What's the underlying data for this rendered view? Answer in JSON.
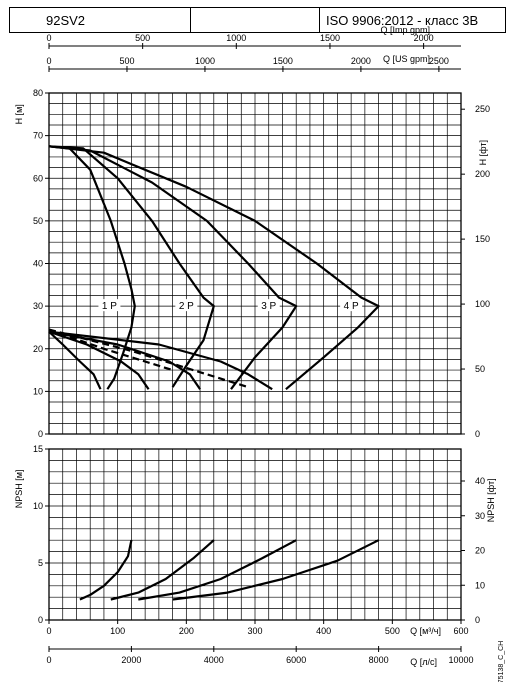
{
  "header": {
    "model": "92SV2",
    "middle": "",
    "standard": "ISO 9906:2012 - класс 3B"
  },
  "colors": {
    "ink": "#000000",
    "grid": "#000000",
    "background": "#ffffff"
  },
  "code_label": "75138_C_CH",
  "chart_data": [
    {
      "type": "line",
      "title": "",
      "ylabel": "H [м]",
      "ylabel_right": "H [фт]",
      "xlabel": "Q [м³/ч]",
      "ylim": [
        0,
        80
      ],
      "yticks": [
        0,
        10,
        20,
        30,
        40,
        50,
        60,
        70,
        80
      ],
      "right_axis": {
        "label": "H [фт]",
        "ticks": [
          0,
          50,
          100,
          150,
          200,
          250
        ],
        "factor": 3.28084
      },
      "top_axes": [
        {
          "label": "Q [Imp gpm]",
          "ticks": [
            0,
            500,
            1000,
            1500,
            2000
          ],
          "factor": 3.666
        },
        {
          "label": "Q [US gpm]",
          "ticks": [
            0,
            500,
            1000,
            1500,
            2000,
            2500
          ],
          "factor": 4.403
        }
      ],
      "grid": true,
      "series": [
        {
          "name": "1 P",
          "style": "head",
          "points": [
            [
              0,
              67.5
            ],
            [
              30,
              67
            ],
            [
              60,
              62
            ],
            [
              90,
              50
            ],
            [
              110,
              40
            ],
            [
              120,
              34
            ],
            [
              125,
              30
            ],
            [
              120,
              25
            ],
            [
              108,
              19
            ],
            [
              95,
              13
            ],
            [
              85,
              10.5
            ]
          ]
        },
        {
          "name": "2 P",
          "style": "head",
          "points": [
            [
              0,
              67.5
            ],
            [
              50,
              67
            ],
            [
              100,
              60
            ],
            [
              150,
              50
            ],
            [
              190,
              40
            ],
            [
              225,
              32
            ],
            [
              240,
              30
            ],
            [
              225,
              22
            ],
            [
              200,
              16
            ],
            [
              180,
              11
            ]
          ]
        },
        {
          "name": "3 P",
          "style": "head",
          "points": [
            [
              0,
              67.5
            ],
            [
              60,
              66.5
            ],
            [
              150,
              59
            ],
            [
              230,
              50
            ],
            [
              290,
              40
            ],
            [
              335,
              32
            ],
            [
              360,
              30
            ],
            [
              340,
              25
            ],
            [
              300,
              18
            ],
            [
              265,
              10.5
            ]
          ]
        },
        {
          "name": "4 P",
          "style": "head",
          "points": [
            [
              0,
              67.5
            ],
            [
              80,
              66
            ],
            [
              200,
              58
            ],
            [
              300,
              50
            ],
            [
              390,
              40
            ],
            [
              455,
              32
            ],
            [
              480,
              30
            ],
            [
              450,
              25
            ],
            [
              400,
              18
            ],
            [
              345,
              10.5
            ]
          ]
        },
        {
          "name": "",
          "style": "lower",
          "points": [
            [
              0,
              24
            ],
            [
              20,
              21
            ],
            [
              45,
              17
            ],
            [
              65,
              14
            ],
            [
              75,
              10.5
            ]
          ]
        },
        {
          "name": "",
          "style": "lower",
          "points": [
            [
              0,
              24
            ],
            [
              55,
              21
            ],
            [
              105,
              17
            ],
            [
              130,
              14
            ],
            [
              145,
              10.5
            ]
          ]
        },
        {
          "name": "",
          "style": "lower",
          "points": [
            [
              0,
              24
            ],
            [
              100,
              21
            ],
            [
              175,
              17
            ],
            [
              205,
              14
            ],
            [
              220,
              10.5
            ]
          ]
        },
        {
          "name": "",
          "style": "lower",
          "points": [
            [
              0,
              24
            ],
            [
              160,
              21
            ],
            [
              250,
              17
            ],
            [
              290,
              14
            ],
            [
              325,
              10.5
            ]
          ]
        },
        {
          "name": "",
          "style": "dashed",
          "points": [
            [
              0,
              24.5
            ],
            [
              120,
              19.5
            ],
            [
              180,
              16.5
            ],
            [
              240,
              13.5
            ],
            [
              290,
              11
            ]
          ]
        },
        {
          "name": "",
          "style": "dashed",
          "points": [
            [
              0,
              24.5
            ],
            [
              80,
              20
            ],
            [
              140,
              17
            ],
            [
              180,
              15
            ]
          ]
        }
      ],
      "labels": [
        {
          "text": "1 P",
          "x": 88,
          "y": 30
        },
        {
          "text": "2 P",
          "x": 200,
          "y": 30
        },
        {
          "text": "3 P",
          "x": 320,
          "y": 30
        },
        {
          "text": "4 P",
          "x": 440,
          "y": 30
        }
      ]
    },
    {
      "type": "line",
      "title": "",
      "ylabel": "NPSH [м]",
      "ylabel_right": "NPSH [фт]",
      "xlabel": "Q [м³/ч]",
      "xlim": [
        0,
        600
      ],
      "xticks": [
        0,
        100,
        200,
        300,
        400,
        500,
        600
      ],
      "ylim": [
        0,
        15
      ],
      "yticks": [
        0,
        5,
        10,
        15
      ],
      "right_axis": {
        "label": "NPSH [фт]",
        "ticks": [
          0,
          10,
          20,
          30,
          40
        ],
        "factor": 3.28084
      },
      "bottom_axes": [
        {
          "label": "Q [л/с]",
          "ticks": [
            0,
            2000,
            4000,
            6000,
            8000,
            10000
          ],
          "factor": 16.667
        }
      ],
      "grid": true,
      "series": [
        {
          "name": "",
          "points": [
            [
              45,
              1.8
            ],
            [
              60,
              2.2
            ],
            [
              80,
              3.0
            ],
            [
              100,
              4.2
            ],
            [
              115,
              5.6
            ],
            [
              120,
              7.0
            ]
          ]
        },
        {
          "name": "",
          "points": [
            [
              90,
              1.8
            ],
            [
              130,
              2.4
            ],
            [
              170,
              3.6
            ],
            [
              210,
              5.4
            ],
            [
              240,
              7.0
            ]
          ]
        },
        {
          "name": "",
          "points": [
            [
              130,
              1.8
            ],
            [
              190,
              2.4
            ],
            [
              250,
              3.6
            ],
            [
              310,
              5.4
            ],
            [
              360,
              7.0
            ]
          ]
        },
        {
          "name": "",
          "points": [
            [
              180,
              1.8
            ],
            [
              260,
              2.4
            ],
            [
              340,
              3.6
            ],
            [
              420,
              5.2
            ],
            [
              480,
              7.0
            ]
          ]
        }
      ]
    }
  ]
}
